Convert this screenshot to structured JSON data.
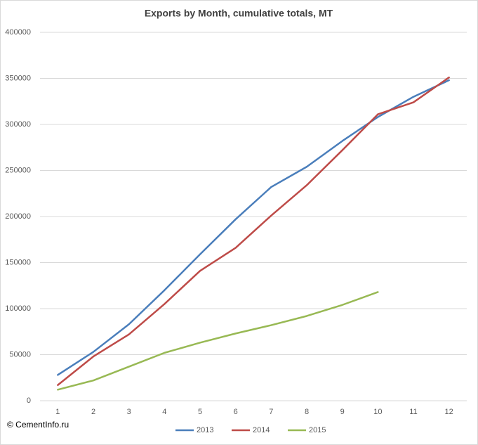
{
  "chart_data": {
    "type": "line",
    "title": "Exports by Month, cumulative totals, MT",
    "categories": [
      "1",
      "2",
      "3",
      "4",
      "5",
      "6",
      "7",
      "8",
      "9",
      "10",
      "11",
      "12"
    ],
    "series": [
      {
        "name": "2013",
        "color": "#4a7ebb",
        "values": [
          28000,
          53000,
          83000,
          120000,
          159000,
          197000,
          232000,
          254000,
          282000,
          308000,
          330000,
          348000
        ]
      },
      {
        "name": "2014",
        "color": "#be4b48",
        "values": [
          17000,
          48000,
          72000,
          105000,
          141000,
          166000,
          201000,
          234000,
          272000,
          311000,
          324000,
          351000
        ]
      },
      {
        "name": "2015",
        "color": "#98b954",
        "values": [
          12000,
          22000,
          37000,
          52000,
          63000,
          73000,
          82000,
          92000,
          104000,
          118000,
          null,
          null
        ]
      }
    ],
    "ylim": [
      0,
      400000
    ],
    "yticks": [
      0,
      50000,
      100000,
      150000,
      200000,
      250000,
      300000,
      350000,
      400000
    ],
    "grid": true,
    "legend": "bottom",
    "source": "© CementInfo.ru"
  }
}
